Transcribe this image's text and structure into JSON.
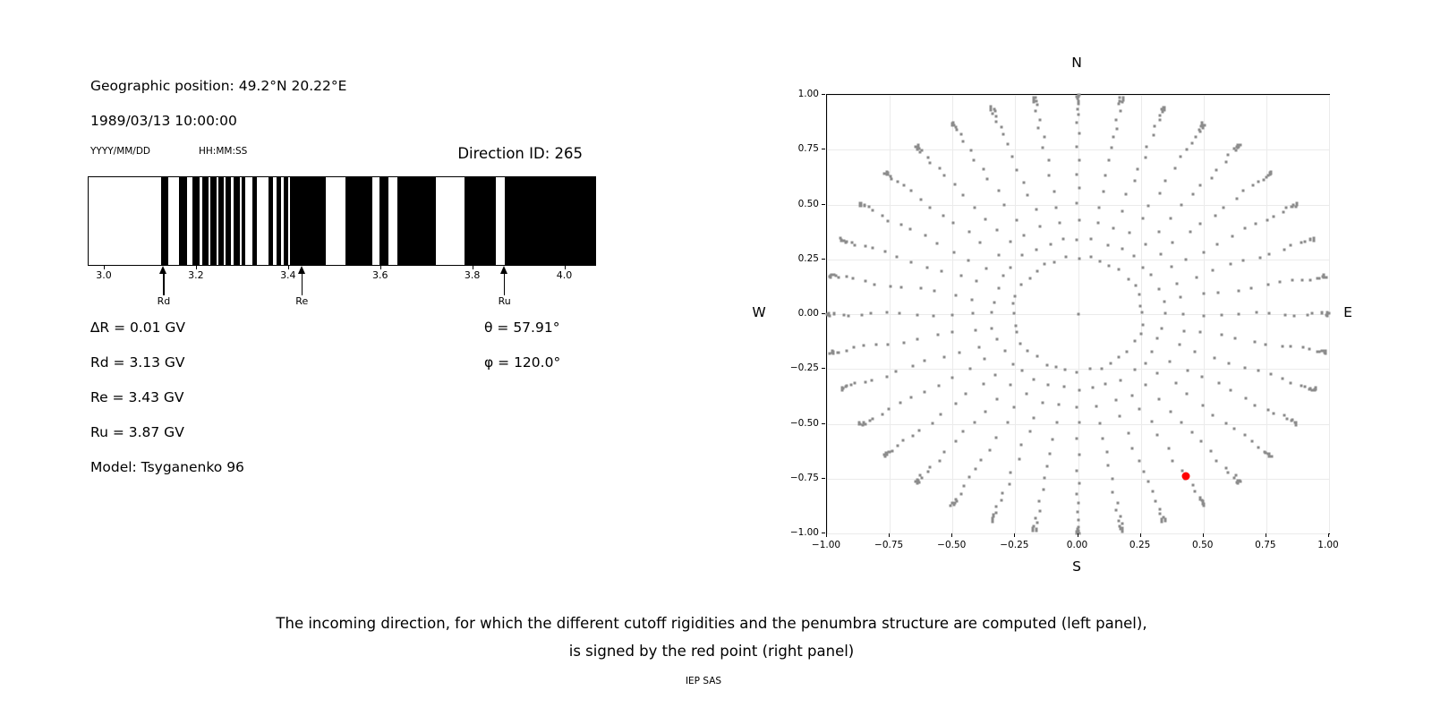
{
  "header": {
    "geographic_position": "Geographic position: 49.2°N 20.22°E",
    "datetime": "1989/03/13 10:00:00",
    "date_format": "YYYY/MM/DD",
    "time_format": "HH:MM:SS",
    "direction_id": "Direction ID: 265"
  },
  "left_panel": {
    "values_left": [
      "∆R = 0.01 GV",
      "Rd = 3.13 GV",
      "Re = 3.43 GV",
      "Ru = 3.87 GV",
      "Model: Tsyganenko 96"
    ],
    "values_right": [
      "θ = 57.91°",
      "φ = 120.0°"
    ]
  },
  "chart_data": [
    {
      "type": "barcode",
      "name": "penumbra-structure",
      "x_range": [
        2.965,
        4.065
      ],
      "x_unit": "GV",
      "x_tick_values": [
        3.0,
        3.2,
        3.4,
        3.6,
        3.8,
        4.0
      ],
      "x_tick_labels": [
        "3.0",
        "3.2",
        "3.4",
        "3.6",
        "3.8",
        "4.0"
      ],
      "black_bands_gv": [
        [
          3.123,
          3.138
        ],
        [
          3.162,
          3.178
        ],
        [
          3.191,
          3.206
        ],
        [
          3.212,
          3.226
        ],
        [
          3.229,
          3.243
        ],
        [
          3.246,
          3.259
        ],
        [
          3.263,
          3.274
        ],
        [
          3.28,
          3.294
        ],
        [
          3.298,
          3.306
        ],
        [
          3.32,
          3.331
        ],
        [
          3.356,
          3.366
        ],
        [
          3.374,
          3.383
        ],
        [
          3.389,
          3.398
        ],
        [
          3.403,
          3.481
        ],
        [
          3.522,
          3.581
        ],
        [
          3.597,
          3.617
        ],
        [
          3.635,
          3.72
        ],
        [
          3.782,
          3.85
        ],
        [
          3.869,
          4.065
        ]
      ],
      "arrows": [
        {
          "label": "Rd",
          "gv": 3.13
        },
        {
          "label": "Re",
          "gv": 3.43
        },
        {
          "label": "Ru",
          "gv": 3.87
        }
      ],
      "band_color": "#000000",
      "background": "#ffffff"
    },
    {
      "type": "scatter",
      "name": "incoming-directions",
      "xlim": [
        -1,
        1
      ],
      "ylim": [
        -1,
        1
      ],
      "tick_values": [
        -1,
        -0.75,
        -0.5,
        -0.25,
        0,
        0.25,
        0.5,
        0.75,
        1
      ],
      "x_tick_labels": [
        "−1.00",
        "−0.75",
        "−0.50",
        "−0.25",
        "0.00",
        "0.25",
        "0.50",
        "0.75",
        "1.00"
      ],
      "y_tick_labels": [
        "1.00",
        "0.75",
        "0.50",
        "0.25",
        "0.00",
        "−0.25",
        "−0.50",
        "−0.75",
        "−1.00"
      ],
      "compass_labels": {
        "top": "N",
        "bottom": "S",
        "left": "W",
        "right": "E"
      },
      "grid": true,
      "grid_color": "#ebebeb",
      "dot_color": "#8c8c8c",
      "red_color": "#ff0000",
      "pattern": {
        "description": "36 radial spokes of gray direction dots, dots bunch toward r=1 rim, inner ring at r≈0.26, single dot at center",
        "azimuth_step_deg": 10,
        "zenith_angles_deg": [
          15,
          20,
          25,
          30,
          35,
          40,
          45,
          50,
          55,
          60,
          65,
          70,
          75,
          78,
          81,
          84,
          86,
          88,
          89,
          90
        ],
        "projection": "r = sin(zenith)",
        "center_point": [
          0,
          0
        ],
        "jitter": 0.007
      },
      "red_point": {
        "x": 0.43,
        "y": -0.74
      }
    }
  ],
  "caption": {
    "line1": "The incoming direction, for which the different cutoff rigidities and the penumbra structure are computed (left panel),",
    "line2": "is signed by the red point (right panel)",
    "credit": "IEP SAS"
  }
}
